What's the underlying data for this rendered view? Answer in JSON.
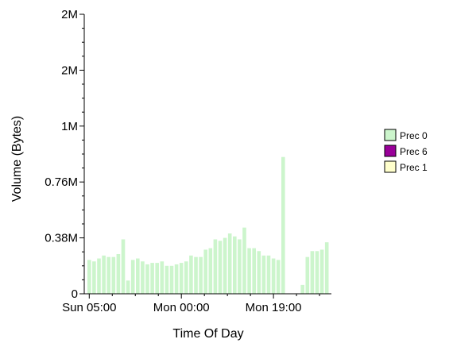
{
  "chart_data": {
    "type": "bar",
    "xlabel": "Time Of Day",
    "ylabel": "Volume (Bytes)",
    "ylim": [
      0,
      1.9
    ],
    "y_unit": "M bytes",
    "y_ticks": [
      {
        "value": 0,
        "label": "0"
      },
      {
        "value": 0.38,
        "label": "0.38M"
      },
      {
        "value": 0.76,
        "label": "0.76M"
      },
      {
        "value": 1.14,
        "label": "1M"
      },
      {
        "value": 1.52,
        "label": "2M"
      },
      {
        "value": 1.9,
        "label": "2M"
      }
    ],
    "x_tick_labels": [
      "Sun 05:00",
      "Mon 00:00",
      "Mon 19:00"
    ],
    "x_tick_bar_index": [
      0,
      19,
      38
    ],
    "legend": {
      "placement": "right",
      "items": [
        "Prec 0",
        "Prec 6",
        "Prec 1"
      ]
    },
    "series": [
      {
        "name": "Prec 0",
        "color": "#ccf5cc",
        "values": [
          0.23,
          0.22,
          0.24,
          0.26,
          0.25,
          0.25,
          0.27,
          0.37,
          0.09,
          0.23,
          0.24,
          0.22,
          0.2,
          0.21,
          0.21,
          0.22,
          0.19,
          0.19,
          0.2,
          0.21,
          0.22,
          0.26,
          0.25,
          0.25,
          0.3,
          0.31,
          0.37,
          0.36,
          0.38,
          0.41,
          0.39,
          0.37,
          0.45,
          0.31,
          0.31,
          0.29,
          0.26,
          0.26,
          0.24,
          0.23,
          0.93,
          0,
          0,
          0,
          0.06,
          0.25,
          0.29,
          0.29,
          0.3,
          0.35
        ]
      },
      {
        "name": "Prec 6",
        "color": "#990099",
        "values": []
      },
      {
        "name": "Prec 1",
        "color": "#ffffcc",
        "values": []
      }
    ]
  }
}
